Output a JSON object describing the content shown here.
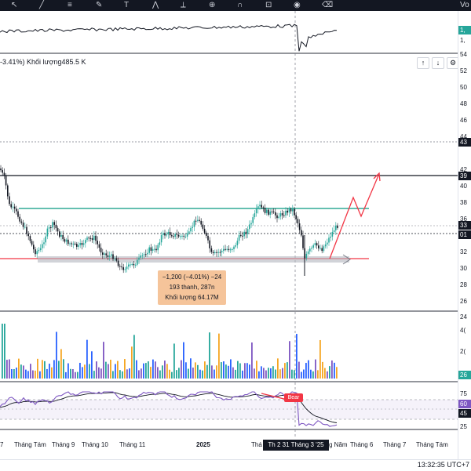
{
  "toolbar": {
    "icons": [
      "cursor-icon",
      "trendline-icon",
      "fib-icon",
      "brush-icon",
      "text-icon",
      "pattern-icon",
      "ruler-icon",
      "zoom-icon",
      "magnet-icon",
      "lock-icon",
      "eye-icon",
      "trash-icon"
    ],
    "right_label": "Vo"
  },
  "legend": {
    "change": "-3.41%)",
    "volume_label": "Khối lượng",
    "volume_value": "485.5 K"
  },
  "controls": {
    "up": "↑",
    "down": "↓",
    "settings": "⚙"
  },
  "top_pane_scale": {
    "values": [
      "1,",
      "1,",
      "54"
    ],
    "tag_color": "#26a69a"
  },
  "price_scale": {
    "labels": [
      "52",
      "50",
      "48",
      "46",
      "44",
      "42",
      "40",
      "38",
      "36",
      "34",
      "32",
      "30",
      "28",
      "26",
      "24"
    ],
    "tags": [
      {
        "text": "43",
        "color": "#131722"
      },
      {
        "text": "39",
        "color": "#131722"
      },
      {
        "text": "33",
        "color": "#131722"
      },
      {
        "text": "01",
        "color": "#131722"
      }
    ]
  },
  "volume_scale": {
    "labels": [
      "4(",
      "2("
    ],
    "tag": {
      "text": "26",
      "color": "#26a69a"
    }
  },
  "rsi_scale": {
    "labels": [
      "75",
      "25"
    ],
    "tags": [
      {
        "text": "60",
        "color": "#7e57c2"
      },
      {
        "text": "45",
        "color": "#131722"
      }
    ]
  },
  "tooltip": {
    "line1": "−1,200 (−4.01%) −24",
    "line2": "193 thanh, 287n",
    "line3": "Khối lượng 64.17M"
  },
  "bear_label": "Bear",
  "crosshair_date": "Th 2 31 Tháng 3 '25",
  "months": [
    {
      "text": "7",
      "bold": false
    },
    {
      "text": "Tháng Tám",
      "bold": false
    },
    {
      "text": "Tháng 9",
      "bold": false
    },
    {
      "text": "Tháng 10",
      "bold": false
    },
    {
      "text": "Tháng 11",
      "bold": false
    },
    {
      "text": "2025",
      "bold": true
    },
    {
      "text": "Thá",
      "bold": false
    },
    {
      "text": "g Năm",
      "bold": false
    },
    {
      "text": "Tháng 6",
      "bold": false
    },
    {
      "text": "Tháng 7",
      "bold": false
    },
    {
      "text": "Tháng Tám",
      "bold": false
    }
  ],
  "clock": "13:32:35 UTC+7",
  "colors": {
    "up": "#26a69a",
    "down": "#131722",
    "resistance": "#131722",
    "support_green": "#089981",
    "support_red": "#f23645",
    "rsi": "#7e57c2",
    "arrow": "#f23645",
    "box": "#b2b5be"
  }
}
